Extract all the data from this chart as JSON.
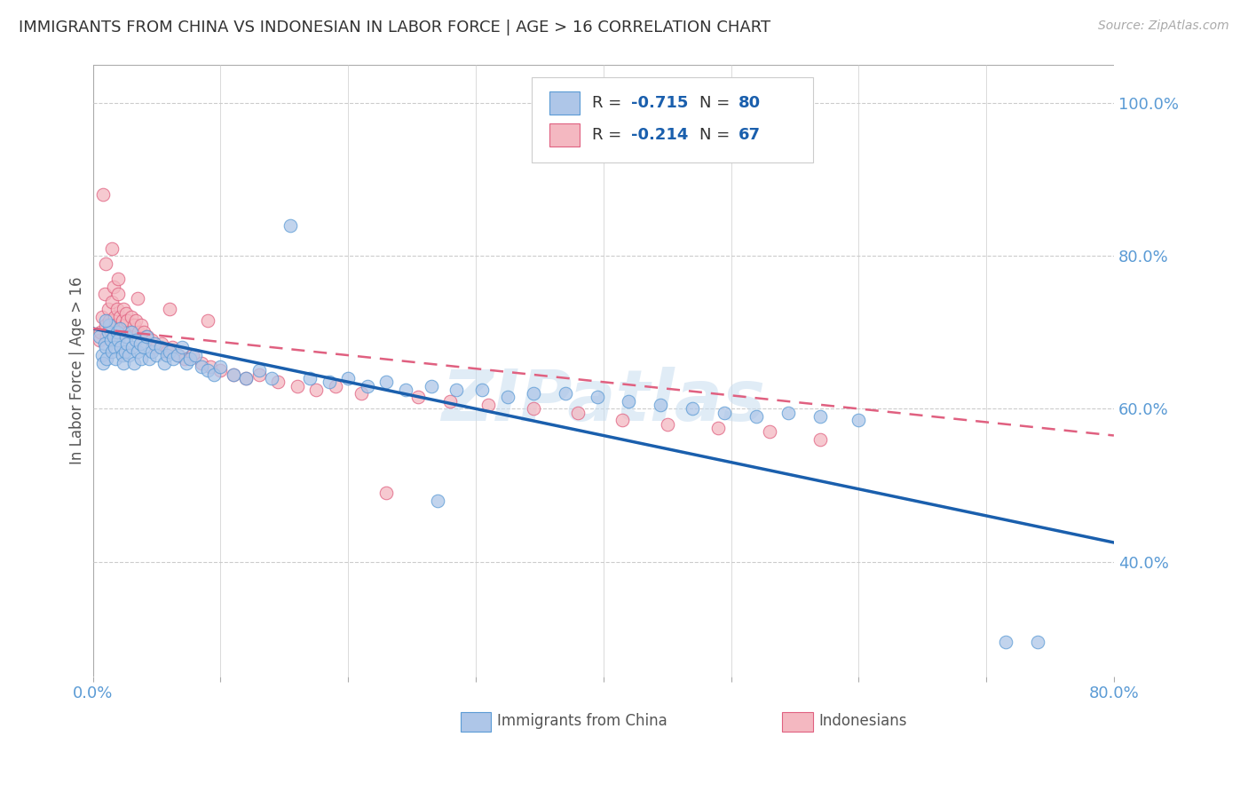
{
  "title": "IMMIGRANTS FROM CHINA VS INDONESIAN IN LABOR FORCE | AGE > 16 CORRELATION CHART",
  "source": "Source: ZipAtlas.com",
  "ylabel": "In Labor Force | Age > 16",
  "xlim": [
    0.0,
    0.8
  ],
  "ylim": [
    0.25,
    1.05
  ],
  "y_ticks_right": [
    0.4,
    0.6,
    0.8,
    1.0
  ],
  "china_color": "#aec6e8",
  "china_edge_color": "#5b9bd5",
  "indonesia_color": "#f4b8c1",
  "indonesia_edge_color": "#e06080",
  "china_line_color": "#1a5fad",
  "indonesia_line_color": "#e06080",
  "watermark": "ZIPatlas",
  "legend_R_china": "-0.715",
  "legend_N_china": "80",
  "legend_R_indonesia": "-0.214",
  "legend_N_indonesia": "67",
  "china_trend_x": [
    0.0,
    0.8
  ],
  "china_trend_y": [
    0.705,
    0.425
  ],
  "indonesia_trend_x": [
    0.0,
    0.8
  ],
  "indonesia_trend_y": [
    0.705,
    0.565
  ],
  "china_scatter_x": [
    0.005,
    0.007,
    0.008,
    0.009,
    0.01,
    0.011,
    0.012,
    0.013,
    0.014,
    0.015,
    0.016,
    0.017,
    0.018,
    0.019,
    0.02,
    0.021,
    0.022,
    0.023,
    0.024,
    0.025,
    0.026,
    0.027,
    0.028,
    0.03,
    0.031,
    0.032,
    0.034,
    0.035,
    0.037,
    0.038,
    0.04,
    0.042,
    0.044,
    0.046,
    0.048,
    0.05,
    0.053,
    0.056,
    0.058,
    0.06,
    0.063,
    0.066,
    0.07,
    0.073,
    0.076,
    0.08,
    0.085,
    0.09,
    0.095,
    0.1,
    0.11,
    0.12,
    0.13,
    0.14,
    0.155,
    0.17,
    0.185,
    0.2,
    0.215,
    0.23,
    0.245,
    0.265,
    0.285,
    0.305,
    0.325,
    0.345,
    0.37,
    0.395,
    0.42,
    0.445,
    0.47,
    0.495,
    0.52,
    0.545,
    0.57,
    0.6,
    0.27,
    0.715,
    0.74,
    0.01
  ],
  "china_scatter_y": [
    0.695,
    0.67,
    0.66,
    0.685,
    0.68,
    0.665,
    0.7,
    0.71,
    0.69,
    0.675,
    0.695,
    0.68,
    0.665,
    0.7,
    0.69,
    0.705,
    0.68,
    0.67,
    0.66,
    0.675,
    0.695,
    0.685,
    0.67,
    0.7,
    0.68,
    0.66,
    0.69,
    0.675,
    0.685,
    0.665,
    0.68,
    0.695,
    0.665,
    0.675,
    0.685,
    0.67,
    0.68,
    0.66,
    0.67,
    0.675,
    0.665,
    0.67,
    0.68,
    0.66,
    0.665,
    0.67,
    0.655,
    0.65,
    0.645,
    0.655,
    0.645,
    0.64,
    0.65,
    0.64,
    0.84,
    0.64,
    0.635,
    0.64,
    0.63,
    0.635,
    0.625,
    0.63,
    0.625,
    0.625,
    0.615,
    0.62,
    0.62,
    0.615,
    0.61,
    0.605,
    0.6,
    0.595,
    0.59,
    0.595,
    0.59,
    0.585,
    0.48,
    0.295,
    0.295,
    0.715
  ],
  "indonesia_scatter_x": [
    0.005,
    0.006,
    0.007,
    0.008,
    0.009,
    0.01,
    0.011,
    0.012,
    0.013,
    0.014,
    0.015,
    0.016,
    0.017,
    0.018,
    0.019,
    0.02,
    0.021,
    0.022,
    0.023,
    0.024,
    0.025,
    0.026,
    0.027,
    0.028,
    0.03,
    0.032,
    0.034,
    0.036,
    0.038,
    0.04,
    0.043,
    0.046,
    0.05,
    0.054,
    0.058,
    0.062,
    0.067,
    0.072,
    0.078,
    0.085,
    0.092,
    0.1,
    0.11,
    0.12,
    0.13,
    0.145,
    0.16,
    0.175,
    0.19,
    0.21,
    0.23,
    0.255,
    0.28,
    0.31,
    0.345,
    0.38,
    0.415,
    0.45,
    0.49,
    0.53,
    0.57,
    0.01,
    0.015,
    0.02,
    0.035,
    0.06,
    0.09
  ],
  "indonesia_scatter_y": [
    0.69,
    0.7,
    0.72,
    0.88,
    0.75,
    0.71,
    0.695,
    0.73,
    0.715,
    0.7,
    0.74,
    0.76,
    0.72,
    0.71,
    0.73,
    0.75,
    0.72,
    0.7,
    0.715,
    0.73,
    0.71,
    0.725,
    0.715,
    0.7,
    0.72,
    0.71,
    0.715,
    0.7,
    0.71,
    0.7,
    0.695,
    0.69,
    0.68,
    0.685,
    0.675,
    0.68,
    0.67,
    0.665,
    0.67,
    0.66,
    0.655,
    0.65,
    0.645,
    0.64,
    0.645,
    0.635,
    0.63,
    0.625,
    0.63,
    0.62,
    0.49,
    0.615,
    0.61,
    0.605,
    0.6,
    0.595,
    0.585,
    0.58,
    0.575,
    0.57,
    0.56,
    0.79,
    0.81,
    0.77,
    0.745,
    0.73,
    0.715
  ],
  "marker_size": 110,
  "alpha": 0.75,
  "grid_color": "#cccccc",
  "background_color": "#ffffff",
  "title_color": "#333333",
  "axis_label_color": "#5b9bd5",
  "legend_text_color": "#333333",
  "legend_value_color": "#1a5fad"
}
